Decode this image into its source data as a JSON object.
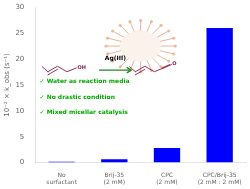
{
  "chart_data": {
    "type": "bar",
    "categories": [
      "No\nsurfactant",
      "Brij-35\n(2 mM)",
      "CPC\n(2 mM)",
      "CPC/Brij-35\n(2 mM : 2 mM)"
    ],
    "values": [
      0.15,
      0.65,
      2.8,
      26.0
    ],
    "color": "blue",
    "ylabel": "10⁻² × k_obs (s⁻¹)",
    "ylim": [
      0,
      30
    ],
    "yticks": [
      0,
      5,
      10,
      15,
      20,
      25,
      30
    ],
    "grid": false,
    "annotations": [
      "✓ Water as reaction media",
      "✓ No drastic condition",
      "✓ Mixed micellar catalysis",
      "Ag(III)",
      "OH",
      "O"
    ]
  }
}
